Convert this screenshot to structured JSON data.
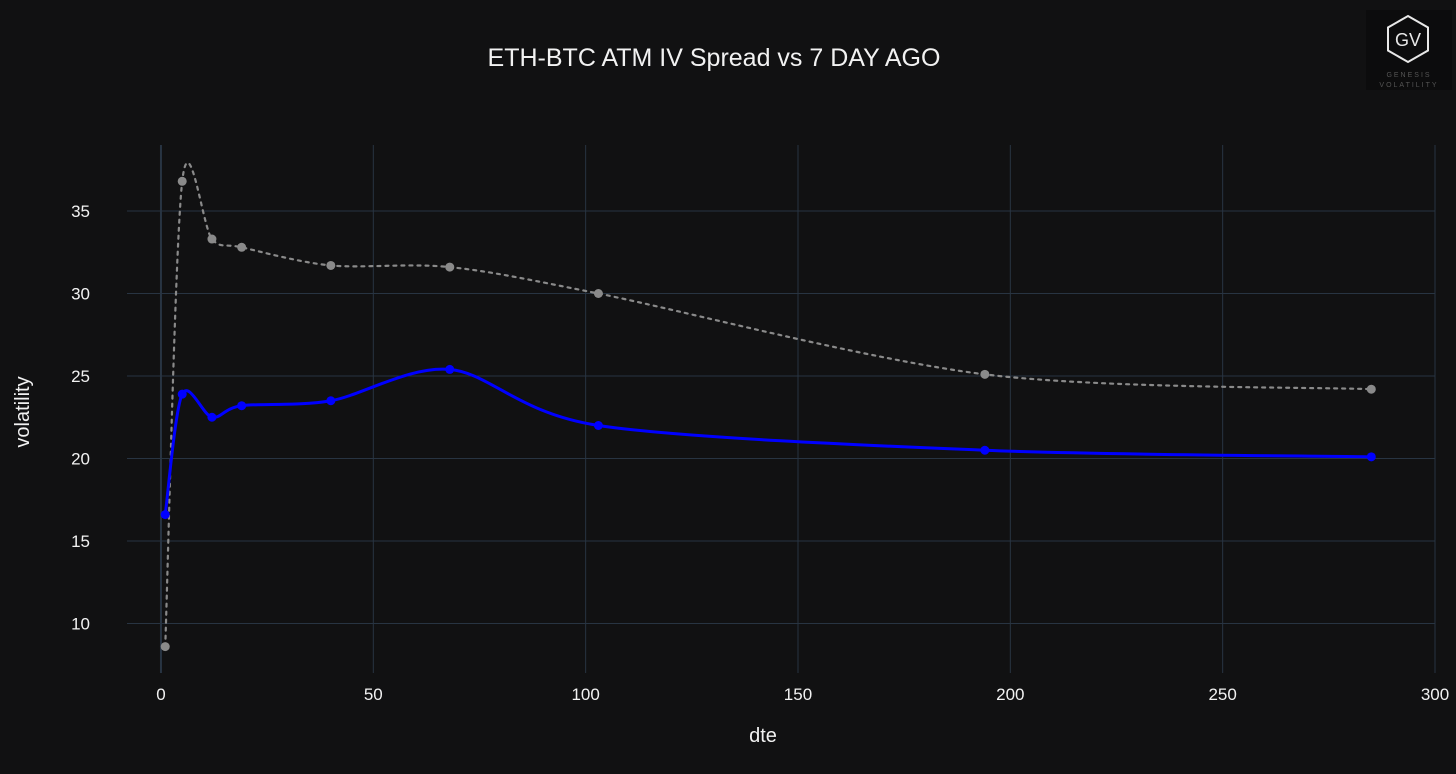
{
  "chart_data": {
    "type": "line",
    "title": "ETH-BTC ATM IV Spread vs 7 DAY AGO",
    "xlabel": "dte",
    "ylabel": "volatility",
    "xlim": [
      -8,
      300
    ],
    "ylim": [
      7,
      39
    ],
    "xticks": [
      0,
      50,
      100,
      150,
      200,
      250,
      300
    ],
    "yticks": [
      10,
      15,
      20,
      25,
      30,
      35
    ],
    "grid": true,
    "series": [
      {
        "color": "#0000ff",
        "style": "solid",
        "x": [
          1,
          5,
          12,
          19,
          40,
          68,
          103,
          194,
          285
        ],
        "y": [
          16.6,
          23.9,
          22.5,
          23.2,
          23.5,
          25.4,
          22.0,
          20.5,
          20.1
        ]
      },
      {
        "color": "#8a8a8a",
        "style": "dotted",
        "x": [
          1,
          5,
          12,
          19,
          40,
          68,
          103,
          194,
          285
        ],
        "y": [
          8.6,
          36.8,
          33.3,
          32.8,
          31.7,
          31.6,
          30.0,
          25.1,
          24.2
        ]
      }
    ]
  },
  "logo": {
    "initials": "GV",
    "line1": "GENESIS",
    "line2": "VOLATILITY"
  },
  "colors": {
    "background": "#111112",
    "grid": "#283442",
    "text": "#f2f2f2"
  }
}
